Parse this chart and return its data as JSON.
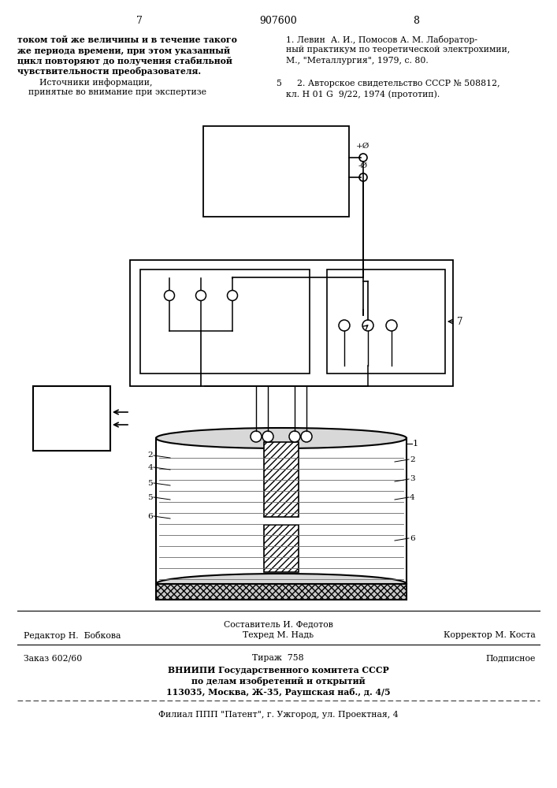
{
  "page_number_left": "7",
  "page_number_center": "907600",
  "page_number_right": "8",
  "left_col": [
    "током той же величины и в течение такого",
    "же периода времени, при этом указанный",
    "цикл повторяют до получения стабильной",
    "чувствительности преобразователя.",
    "        Источники информации,",
    "    принятые во внимание при экспертизе"
  ],
  "left_col_bold": [
    true,
    true,
    true,
    true,
    false,
    false
  ],
  "rc_l1": "1. Левин  А. И., Помосов А. М. Лаборатор-",
  "rc_l2": "ный практикум по теоретической электрохимии,",
  "rc_l3": "М., \"Металлургия\", 1979, с. 80.",
  "rc_num": "5",
  "rc_l4": "    2. Авторское свидетельство СССР № 508812,",
  "rc_l5": "кл. Н 01 G  9/22, 1974 (прототип).",
  "f1": "Составитель И. Федотов",
  "f2l": "Редактор Н.  Бобкова",
  "f2c": "Техред М. Надь",
  "f2r": "Корректор М. Коста",
  "f3l": "Заказ 602/60",
  "f3c": "Тираж  758",
  "f3r": "Подписное",
  "f4": "ВНИИПИ Государственного комитета СССР",
  "f5": "по делам изобретений и открытий",
  "f6": "113035, Москва, Ж-35, Раушская наб., д. 4/5",
  "f7": "Филиал ППП \"Патент\", г. Ужгород, ул. Проектная, 4",
  "bg": "#ffffff",
  "tc": "#000000"
}
